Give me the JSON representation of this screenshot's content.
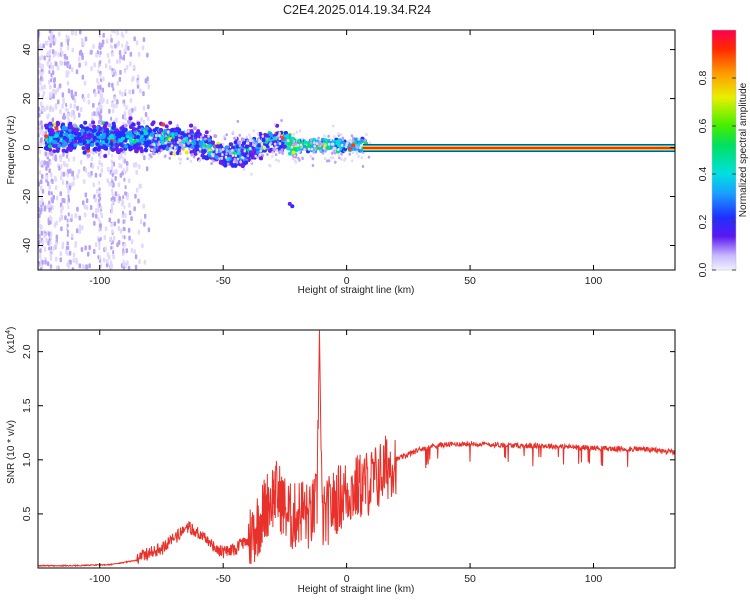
{
  "title": "C2E4.2025.014.19.34.R24",
  "chart_data": [
    {
      "type": "heatmap",
      "xlabel": "Height of straight line (km)",
      "ylabel": "Frequency (Hz)",
      "xlim": [
        -125,
        133
      ],
      "ylim": [
        -50,
        48
      ],
      "xticks": [
        -100,
        -50,
        0,
        50,
        100
      ],
      "yticks": [
        -40,
        -20,
        0,
        20,
        40
      ],
      "colorbar": {
        "label": "Normalized spectral amplitude",
        "ticks": [
          "0.0",
          "0.2",
          "0.4",
          "0.6",
          "0.8"
        ],
        "range": [
          0,
          1
        ]
      },
      "dominant_band": {
        "frequency_hz": 0,
        "x_from_km": 10,
        "x_to_km": 133,
        "amplitude": 1.0
      }
    },
    {
      "type": "line",
      "xlabel": "Height of straight line (km)",
      "ylabel": "SNR (10 * v/v)",
      "y_multiplier": "(x10^4)",
      "xlim": [
        -125,
        133
      ],
      "ylim": [
        0,
        2.2
      ],
      "xticks": [
        -100,
        -50,
        0,
        50,
        100
      ],
      "yticks": [
        "0.5",
        "1.0",
        "1.5",
        "2.0"
      ],
      "series": [
        {
          "color": "#e8312a",
          "x": [
            -125,
            -110,
            -95,
            -85,
            -75,
            -68,
            -64,
            -60,
            -55,
            -50,
            -45,
            -40,
            -35,
            -32,
            -29,
            -27,
            -25,
            -22,
            -20,
            -18,
            -15,
            -12,
            -11,
            -10,
            -9,
            -7,
            -5,
            -3,
            0,
            3,
            5,
            8,
            10,
            13,
            15,
            18,
            20,
            25,
            30,
            35,
            40,
            50,
            60,
            70,
            80,
            90,
            100,
            110,
            120,
            133
          ],
          "y": [
            0.02,
            0.02,
            0.03,
            0.07,
            0.15,
            0.28,
            0.35,
            0.3,
            0.2,
            0.12,
            0.15,
            0.25,
            0.45,
            0.6,
            0.7,
            0.65,
            0.55,
            0.45,
            0.5,
            0.55,
            0.45,
            0.6,
            2.2,
            0.5,
            0.45,
            0.55,
            0.6,
            0.65,
            0.7,
            0.72,
            0.75,
            0.78,
            0.8,
            0.85,
            0.9,
            0.97,
            1.0,
            1.05,
            1.1,
            1.13,
            1.14,
            1.15,
            1.14,
            1.13,
            1.13,
            1.12,
            1.11,
            1.1,
            1.1,
            1.07
          ]
        }
      ]
    }
  ]
}
